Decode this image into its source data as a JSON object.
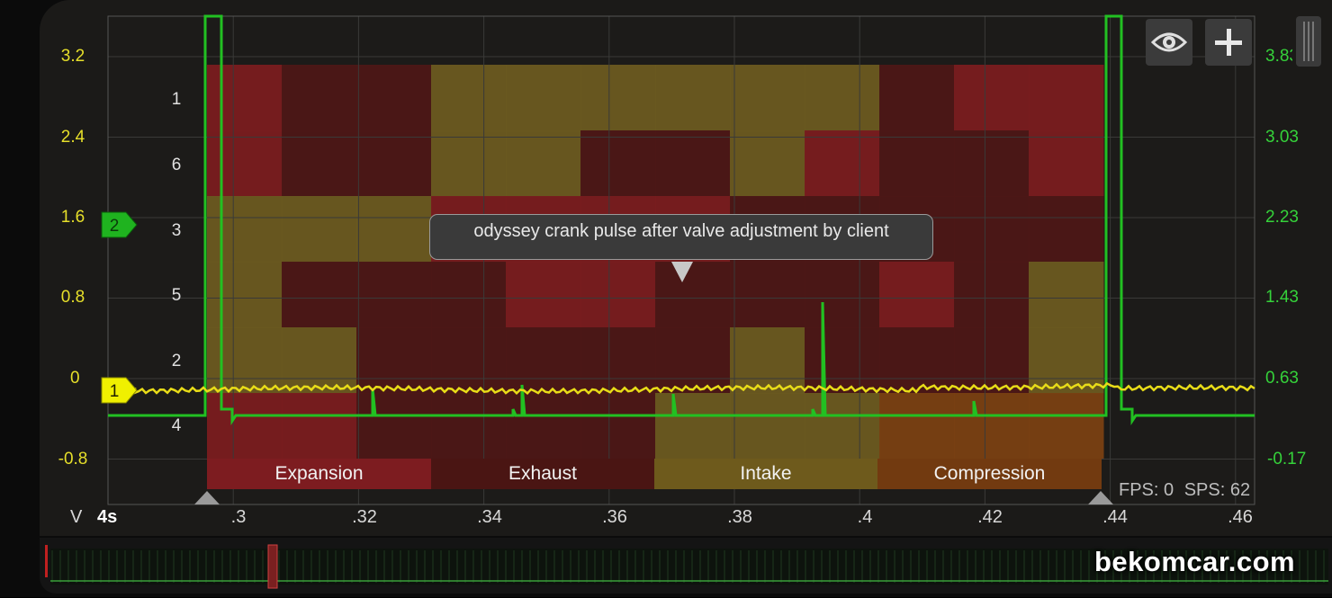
{
  "left_axis": {
    "color": "#e6df2a",
    "ticks": [
      "3.2",
      "2.4",
      "1.6",
      "0.8",
      "0",
      "-0.8"
    ]
  },
  "right_axis": {
    "color": "#35d23a",
    "ticks": [
      "3.83",
      "3.03",
      "2.23",
      "1.43",
      "0.63",
      "-0.17"
    ]
  },
  "x_axis": {
    "unit_label": "V",
    "timebase": "4s",
    "ticks": [
      ".3",
      ".32",
      ".34",
      ".36",
      ".38",
      ".4",
      ".42",
      ".44",
      ".46"
    ]
  },
  "cylinders": [
    "1",
    "6",
    "3",
    "5",
    "2",
    "4"
  ],
  "phases": [
    "Expansion",
    "Exhaust",
    "Intake",
    "Compression"
  ],
  "channels": [
    {
      "label": "2",
      "color": "#1fb31f"
    },
    {
      "label": "1",
      "color": "#f0f000"
    }
  ],
  "tooltip": "odyssey crank pulse after valve adjustment by client",
  "stats": {
    "fps": "FPS: 0",
    "sps": "SPS: 62"
  },
  "toolbar": {
    "visibility_icon": "eye-icon",
    "add_icon": "plus-icon"
  },
  "watermark": "bekomcar.com",
  "colors": {
    "red": "#7a1c1f",
    "dark_red": "#4d1716",
    "olive": "#6b5a20",
    "orange": "#7a4012",
    "trace_green": "#22c022",
    "trace_yellow": "#e8dc18"
  }
}
